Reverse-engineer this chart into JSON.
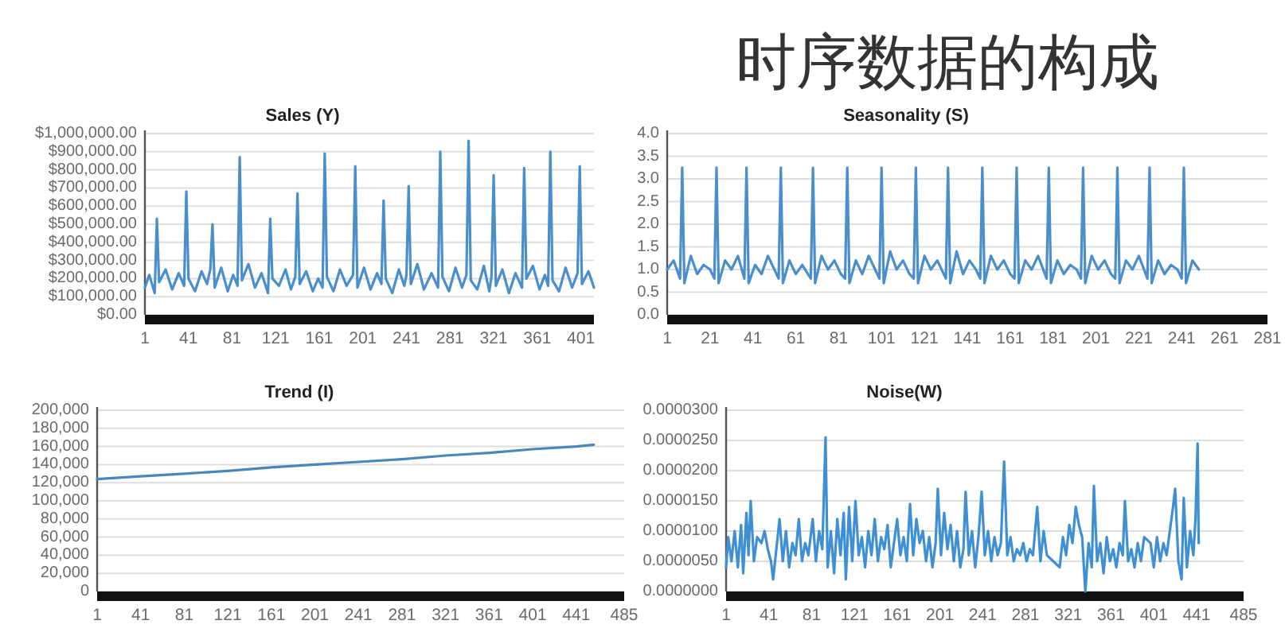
{
  "chart_data": [
    {
      "type": "other",
      "title": "时序数据的构成"
    },
    {
      "type": "line",
      "title": "Sales (Y)",
      "grid": "y",
      "xlim": [
        1,
        413
      ],
      "xticks": [
        1,
        41,
        81,
        121,
        161,
        201,
        241,
        281,
        321,
        361,
        401
      ],
      "ylim": [
        0,
        1000000
      ],
      "yticks": [
        {
          "value": 0,
          "label": "$0.00"
        },
        {
          "value": 100000,
          "label": "$100,000.00"
        },
        {
          "value": 200000,
          "label": "$200,000.00"
        },
        {
          "value": 300000,
          "label": "$300,000.00"
        },
        {
          "value": 400000,
          "label": "$400,000.00"
        },
        {
          "value": 500000,
          "label": "$500,000.00"
        },
        {
          "value": 600000,
          "label": "$600,000.00"
        },
        {
          "value": 700000,
          "label": "$700,000.00"
        },
        {
          "value": 800000,
          "label": "$800,000.00"
        },
        {
          "value": 900000,
          "label": "$900,000.00"
        },
        {
          "value": 1000000,
          "label": "$1,000,000.00"
        }
      ],
      "x": [
        1,
        5,
        10,
        12,
        14,
        20,
        26,
        32,
        37,
        39,
        41,
        47,
        53,
        58,
        61,
        63,
        65,
        71,
        77,
        82,
        86,
        88,
        90,
        96,
        102,
        108,
        114,
        116,
        118,
        124,
        130,
        135,
        139,
        141,
        143,
        149,
        155,
        160,
        164,
        166,
        168,
        174,
        180,
        186,
        192,
        194,
        196,
        202,
        208,
        214,
        218,
        220,
        222,
        228,
        234,
        239,
        241,
        243,
        245,
        251,
        257,
        264,
        270,
        272,
        274,
        280,
        286,
        292,
        296,
        298,
        300,
        306,
        312,
        317,
        319,
        321,
        323,
        329,
        335,
        341,
        347,
        349,
        351,
        357,
        363,
        368,
        371,
        373,
        375,
        381,
        387,
        393,
        398,
        400,
        402,
        408,
        413
      ],
      "series": [
        {
          "color": "#4a8fcc",
          "values": [
            150000,
            220000,
            120000,
            530000,
            180000,
            250000,
            140000,
            230000,
            160000,
            680000,
            200000,
            130000,
            240000,
            170000,
            250000,
            500000,
            150000,
            260000,
            130000,
            220000,
            160000,
            870000,
            190000,
            280000,
            150000,
            230000,
            120000,
            530000,
            200000,
            160000,
            250000,
            140000,
            210000,
            670000,
            170000,
            240000,
            130000,
            200000,
            150000,
            890000,
            210000,
            130000,
            250000,
            160000,
            220000,
            820000,
            150000,
            260000,
            140000,
            230000,
            170000,
            630000,
            200000,
            120000,
            250000,
            160000,
            220000,
            710000,
            170000,
            280000,
            140000,
            230000,
            150000,
            900000,
            210000,
            130000,
            260000,
            150000,
            220000,
            960000,
            190000,
            140000,
            270000,
            130000,
            210000,
            770000,
            160000,
            250000,
            120000,
            230000,
            150000,
            810000,
            200000,
            270000,
            140000,
            220000,
            160000,
            900000,
            190000,
            130000,
            260000,
            150000,
            230000,
            820000,
            170000,
            240000,
            150000
          ]
        }
      ]
    },
    {
      "type": "line",
      "title": "Seasonality (S)",
      "grid": "y",
      "xlim": [
        1,
        281
      ],
      "xticks": [
        1,
        21,
        41,
        61,
        81,
        101,
        121,
        141,
        161,
        181,
        201,
        221,
        241,
        261,
        281
      ],
      "ylim": [
        0,
        4
      ],
      "yticks": [
        {
          "value": 0,
          "label": "0.0"
        },
        0.5,
        {
          "value": 1,
          "label": "1.0"
        },
        1.5,
        {
          "value": 2,
          "label": "2.0"
        },
        2.5,
        {
          "value": 3,
          "label": "3.0"
        },
        3.5,
        {
          "value": 4,
          "label": "4.0"
        }
      ],
      "x": [
        1,
        4,
        7,
        8,
        9,
        12,
        15,
        18,
        21,
        23,
        24,
        25,
        28,
        31,
        34,
        37,
        38,
        39,
        42,
        45,
        48,
        51,
        53,
        54,
        55,
        58,
        61,
        64,
        68,
        69,
        70,
        73,
        76,
        79,
        82,
        84,
        85,
        86,
        89,
        92,
        95,
        98,
        100,
        101,
        102,
        105,
        108,
        111,
        114,
        116,
        117,
        118,
        121,
        124,
        127,
        131,
        132,
        133,
        136,
        139,
        142,
        145,
        147,
        148,
        149,
        152,
        155,
        158,
        161,
        163,
        164,
        165,
        168,
        171,
        174,
        178,
        179,
        180,
        183,
        186,
        189,
        192,
        194,
        195,
        196,
        199,
        202,
        205,
        208,
        210,
        211,
        212,
        215,
        218,
        221,
        225,
        226,
        227,
        230,
        233,
        236,
        239,
        241,
        242,
        243,
        246,
        249
      ],
      "series": [
        {
          "color": "#4a8fcc",
          "values": [
            1.0,
            1.2,
            0.8,
            3.25,
            0.7,
            1.3,
            0.9,
            1.1,
            1.0,
            0.8,
            3.25,
            0.7,
            1.2,
            1.0,
            1.3,
            0.8,
            3.25,
            0.7,
            1.1,
            0.9,
            1.3,
            1.0,
            0.8,
            3.25,
            0.7,
            1.2,
            0.9,
            1.1,
            0.8,
            3.25,
            0.7,
            1.3,
            1.0,
            1.2,
            0.9,
            0.8,
            3.25,
            0.7,
            1.2,
            0.9,
            1.3,
            1.0,
            0.8,
            3.25,
            0.7,
            1.4,
            1.0,
            1.2,
            0.9,
            0.8,
            3.25,
            0.7,
            1.3,
            1.0,
            1.2,
            0.8,
            3.25,
            0.7,
            1.4,
            0.9,
            1.2,
            1.0,
            0.8,
            3.25,
            0.7,
            1.3,
            1.0,
            1.2,
            0.9,
            0.8,
            3.25,
            0.7,
            1.2,
            1.0,
            1.3,
            0.8,
            3.25,
            0.7,
            1.2,
            0.9,
            1.1,
            1.0,
            0.8,
            3.25,
            0.7,
            1.3,
            1.0,
            1.2,
            0.9,
            0.8,
            3.25,
            0.7,
            1.2,
            1.0,
            1.3,
            0.8,
            3.25,
            0.7,
            1.2,
            0.9,
            1.1,
            1.0,
            0.8,
            3.25,
            0.7,
            1.2,
            1.0
          ]
        }
      ]
    },
    {
      "type": "line",
      "title": "Trend (I)",
      "grid": "y",
      "xlim": [
        1,
        485
      ],
      "xticks": [
        1,
        41,
        81,
        121,
        161,
        201,
        241,
        281,
        321,
        361,
        401,
        441,
        485
      ],
      "ylim": [
        0,
        200000
      ],
      "yticks": [
        0,
        {
          "value": 20000,
          "label": "20,000"
        },
        {
          "value": 40000,
          "label": "40,000"
        },
        {
          "value": 60000,
          "label": "60,000"
        },
        {
          "value": 80000,
          "label": "80,000"
        },
        {
          "value": 100000,
          "label": "100,000"
        },
        {
          "value": 120000,
          "label": "120,000"
        },
        {
          "value": 140000,
          "label": "140,000"
        },
        {
          "value": 160000,
          "label": "160,000"
        },
        {
          "value": 180000,
          "label": "180,000"
        },
        {
          "value": 200000,
          "label": "200,000"
        }
      ],
      "x": [
        1,
        41,
        81,
        121,
        161,
        201,
        241,
        281,
        321,
        361,
        401,
        441,
        457
      ],
      "series": [
        {
          "color": "#4a86b8",
          "values": [
            124000,
            127000,
            130000,
            133000,
            137000,
            140000,
            143000,
            146000,
            150000,
            153000,
            157000,
            160000,
            162000
          ]
        }
      ]
    },
    {
      "type": "line",
      "title": "Noise(W)",
      "grid": "y",
      "xlim": [
        1,
        485
      ],
      "xticks": [
        1,
        41,
        81,
        121,
        161,
        201,
        241,
        281,
        321,
        361,
        401,
        441,
        485
      ],
      "ylim": [
        0,
        3e-05
      ],
      "yticks": [
        {
          "value": 0,
          "label": "0.0000000"
        },
        {
          "value": 5e-06,
          "label": "0.0000050"
        },
        {
          "value": 1e-05,
          "label": "0.0000100"
        },
        {
          "value": 1.5e-05,
          "label": "0.0000150"
        },
        {
          "value": 2e-05,
          "label": "0.0000200"
        },
        {
          "value": 2.5e-05,
          "label": "0.0000250"
        },
        {
          "value": 3e-05,
          "label": "0.0000300"
        }
      ],
      "x": [
        1,
        3,
        6,
        9,
        12,
        15,
        17,
        20,
        22,
        24,
        27,
        30,
        34,
        37,
        40,
        43,
        45,
        48,
        51,
        54,
        57,
        60,
        63,
        66,
        69,
        72,
        75,
        78,
        82,
        85,
        88,
        91,
        94,
        96,
        99,
        102,
        105,
        108,
        111,
        113,
        116,
        119,
        122,
        125,
        128,
        131,
        134,
        137,
        140,
        143,
        146,
        149,
        152,
        155,
        158,
        161,
        164,
        167,
        170,
        173,
        176,
        179,
        182,
        185,
        188,
        191,
        194,
        197,
        199,
        202,
        205,
        208,
        211,
        214,
        217,
        220,
        223,
        225,
        228,
        231,
        234,
        237,
        240,
        243,
        246,
        249,
        252,
        255,
        258,
        261,
        264,
        267,
        270,
        273,
        276,
        279,
        282,
        285,
        288,
        292,
        295,
        298,
        301,
        307,
        313,
        316,
        319,
        322,
        325,
        328,
        331,
        334,
        337,
        340,
        343,
        345,
        348,
        351,
        354,
        357,
        360,
        363,
        366,
        369,
        372,
        374,
        377,
        380,
        383,
        386,
        389,
        392,
        398,
        401,
        404,
        407,
        410,
        413,
        416,
        419,
        421,
        424,
        427,
        429,
        432,
        435,
        438,
        440,
        442,
        443
      ],
      "series": [
        {
          "color": "#3f8fd4",
          "values": [
            4e-06,
            9e-06,
            5e-06,
            1e-05,
            4e-06,
            1.1e-05,
            3e-06,
            1.3e-05,
            6e-06,
            1.5e-05,
            5e-06,
            9e-06,
            8e-06,
            1e-05,
            7e-06,
            5e-06,
            2e-06,
            7e-06,
            1.2e-05,
            5e-06,
            1e-05,
            4e-06,
            8e-06,
            6e-06,
            1.2e-05,
            5e-06,
            8e-06,
            6e-06,
            1.2e-05,
            5e-06,
            1e-05,
            7e-06,
            2.55e-05,
            4e-06,
            1e-05,
            3e-06,
            1.2e-05,
            6e-06,
            1.3e-05,
            2e-06,
            1.4e-05,
            5e-06,
            1.5e-05,
            6e-06,
            9e-06,
            4e-06,
            1e-05,
            6e-06,
            1.2e-05,
            5e-06,
            9e-06,
            7e-06,
            1.1e-05,
            4e-06,
            8e-06,
            1.2e-05,
            6e-06,
            9e-06,
            5e-06,
            1.45e-05,
            6e-06,
            1.2e-05,
            8e-06,
            1e-05,
            5e-06,
            9e-06,
            4e-06,
            8e-06,
            1.7e-05,
            6e-06,
            1.3e-05,
            7e-06,
            1.1e-05,
            5e-06,
            1e-05,
            4e-06,
            7e-06,
            1.65e-05,
            6e-06,
            1e-05,
            4e-06,
            9e-06,
            1.65e-05,
            6e-06,
            1e-05,
            5e-06,
            9e-06,
            6e-06,
            8e-06,
            2.15e-05,
            6e-06,
            9e-06,
            5e-06,
            7e-06,
            6e-06,
            8e-06,
            5e-06,
            7e-06,
            6e-06,
            1.4e-05,
            5e-06,
            1e-05,
            6e-06,
            5e-06,
            4e-06,
            9e-06,
            6e-06,
            1.1e-05,
            8e-06,
            1.4e-05,
            1.1e-05,
            9e-06,
            0,
            8e-06,
            4e-06,
            1.75e-05,
            5e-06,
            8e-06,
            3e-06,
            9e-06,
            5e-06,
            7e-06,
            4e-06,
            8e-06,
            6e-06,
            1.5e-05,
            5e-06,
            7e-06,
            4e-06,
            8e-06,
            5e-06,
            9e-06,
            8e-06,
            4e-06,
            9e-06,
            5e-06,
            8e-06,
            6e-06,
            1e-05,
            1.4e-05,
            1.7e-05,
            5e-06,
            2e-06,
            1.55e-05,
            4e-06,
            1e-05,
            6e-06,
            1.2e-05,
            2.45e-05,
            8e-06
          ]
        }
      ]
    }
  ]
}
